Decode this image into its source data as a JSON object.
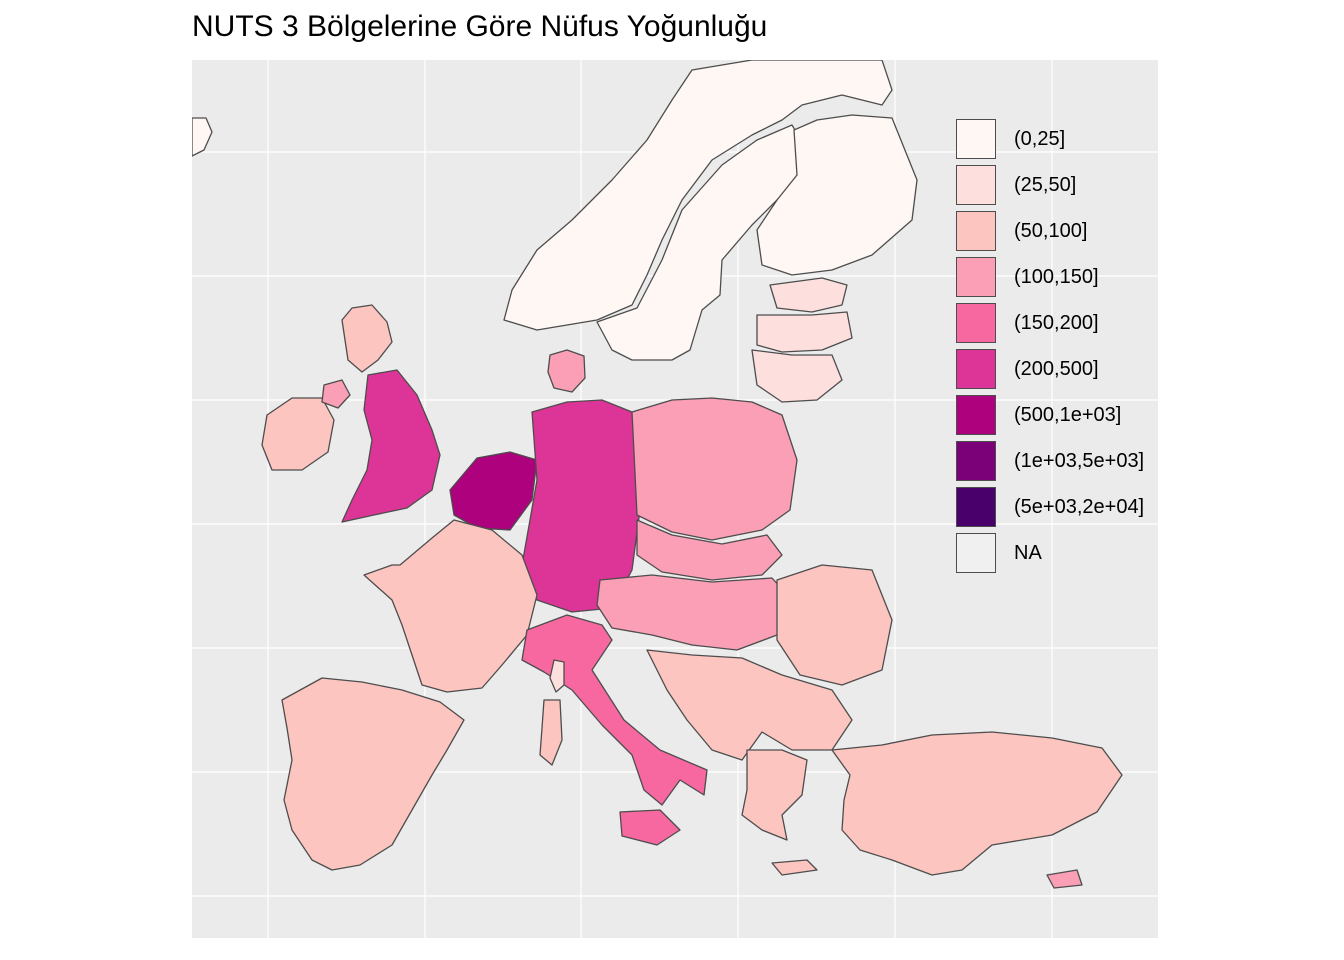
{
  "title": "NUTS 3 Bölgelerine Göre Nüfus Yoğunluğu",
  "legend": {
    "items": [
      {
        "label": "(0,25]",
        "color": "#fff7f3"
      },
      {
        "label": "(25,50]",
        "color": "#fde0dd"
      },
      {
        "label": "(50,100]",
        "color": "#fcc5c0"
      },
      {
        "label": "(100,150]",
        "color": "#fa9fb5"
      },
      {
        "label": "(150,200]",
        "color": "#f768a1"
      },
      {
        "label": "(200,500]",
        "color": "#dd3497"
      },
      {
        "label": "(500,1e+03]",
        "color": "#ae017e"
      },
      {
        "label": "(1e+03,5e+03]",
        "color": "#7a0177"
      },
      {
        "label": "(5e+03,2e+04]",
        "color": "#49006a"
      },
      {
        "label": "NA",
        "color": "#f0f0f0"
      }
    ]
  },
  "map": {
    "background": "#ebebeb",
    "grid_color": "#ffffff",
    "border_color": "#4d4d4d",
    "regions": [
      {
        "name": "iceland",
        "density_class": "(0,25]"
      },
      {
        "name": "norway",
        "density_class": "(0,25]"
      },
      {
        "name": "sweden",
        "density_class": "(0,25]"
      },
      {
        "name": "finland",
        "density_class": "(0,25]"
      },
      {
        "name": "estonia",
        "density_class": "(25,50]"
      },
      {
        "name": "latvia",
        "density_class": "(25,50]"
      },
      {
        "name": "lithuania",
        "density_class": "(25,50]"
      },
      {
        "name": "scotland",
        "density_class": "(50,100]"
      },
      {
        "name": "ireland",
        "density_class": "(50,100]"
      },
      {
        "name": "northern-ireland",
        "density_class": "(100,150]"
      },
      {
        "name": "england",
        "density_class": "(200,500]"
      },
      {
        "name": "denmark",
        "density_class": "(100,150]"
      },
      {
        "name": "benelux",
        "density_class": "(500,1e+03]"
      },
      {
        "name": "germany",
        "density_class": "(200,500]"
      },
      {
        "name": "poland",
        "density_class": "(100,150]"
      },
      {
        "name": "czechia-slovakia",
        "density_class": "(100,150]"
      },
      {
        "name": "france",
        "density_class": "(50,100]"
      },
      {
        "name": "iberia",
        "density_class": "(50,100]"
      },
      {
        "name": "italy",
        "density_class": "(150,200]"
      },
      {
        "name": "austria-hungary",
        "density_class": "(100,150]"
      },
      {
        "name": "romania",
        "density_class": "(50,100]"
      },
      {
        "name": "balkans",
        "density_class": "(50,100]"
      },
      {
        "name": "greece",
        "density_class": "(50,100]"
      },
      {
        "name": "turkey",
        "density_class": "(50,100]"
      },
      {
        "name": "sardinia",
        "density_class": "(50,100]"
      },
      {
        "name": "corsica",
        "density_class": "(25,50]"
      },
      {
        "name": "sicily",
        "density_class": "(150,200]"
      },
      {
        "name": "cyprus",
        "density_class": "(100,150]"
      },
      {
        "name": "crete",
        "density_class": "(50,100]"
      }
    ]
  }
}
